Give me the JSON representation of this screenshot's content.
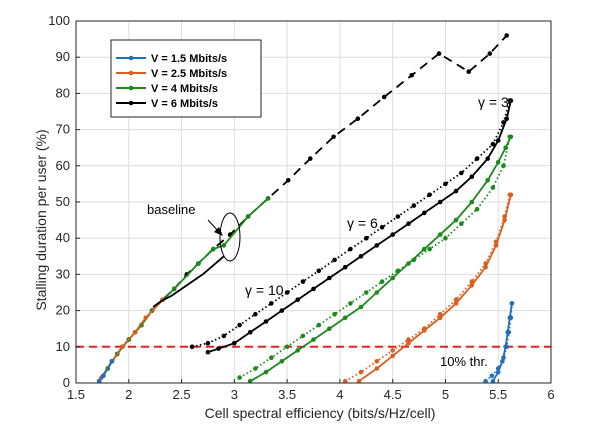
{
  "chart_data": {
    "type": "line",
    "xlabel": "Cell spectral efficiency (bits/s/Hz/cell)",
    "ylabel": "Stalling duration per user (%)",
    "xlim": [
      1.5,
      6
    ],
    "ylim": [
      0,
      100
    ],
    "xticks": [
      "1.5",
      "2",
      "2.5",
      "3",
      "3.5",
      "4",
      "4.5",
      "5",
      "5.5",
      "6"
    ],
    "yticks": [
      "0",
      "10",
      "20",
      "30",
      "40",
      "50",
      "60",
      "70",
      "80",
      "90",
      "100"
    ],
    "grid": true,
    "legend_position": "top-left",
    "colors": {
      "blue": "#1f6fbf",
      "orange": "#d95f1e",
      "green": "#1a8a1a",
      "black": "#000000",
      "threshold": "#e8211f"
    },
    "legend": [
      {
        "label": "V = 1.5 Mbits/s",
        "color": "#1f6fbf"
      },
      {
        "label": "V = 2.5 Mbits/s",
        "color": "#d95f1e"
      },
      {
        "label": "V = 4 Mbits/s",
        "color": "#1a8a1a"
      },
      {
        "label": "V = 6 Mbits/s",
        "color": "#000000"
      }
    ],
    "threshold": {
      "y": 10,
      "label": "10% thr."
    },
    "annotations": {
      "baseline": "baseline",
      "gamma3": "γ = 3",
      "gamma6": "γ = 6",
      "gamma10": "γ = 10"
    },
    "series": [
      {
        "color": "#000000",
        "style": "dashed",
        "markers": true,
        "points": [
          [
            1.72,
            0.5
          ],
          [
            1.76,
            2
          ],
          [
            1.8,
            4
          ],
          [
            1.84,
            6
          ],
          [
            1.89,
            8
          ],
          [
            1.94,
            10
          ],
          [
            2.0,
            12
          ],
          [
            2.06,
            14
          ],
          [
            2.12,
            16
          ],
          [
            2.22,
            20
          ],
          [
            2.32,
            23
          ],
          [
            2.43,
            26
          ],
          [
            2.55,
            30
          ],
          [
            2.66,
            33
          ],
          [
            2.8,
            37
          ],
          [
            2.96,
            41
          ],
          [
            3.13,
            46
          ],
          [
            3.32,
            51
          ],
          [
            3.51,
            56
          ],
          [
            3.72,
            62
          ],
          [
            3.94,
            68
          ],
          [
            4.17,
            73
          ],
          [
            4.42,
            79
          ],
          [
            4.68,
            85
          ],
          [
            4.94,
            91
          ],
          [
            5.22,
            86
          ],
          [
            5.42,
            91
          ],
          [
            5.58,
            96
          ]
        ]
      },
      {
        "color": "#1a8a1a",
        "style": "solid",
        "markers": true,
        "points": [
          [
            1.72,
            0.5
          ],
          [
            1.8,
            4
          ],
          [
            1.89,
            8
          ],
          [
            2.0,
            12
          ],
          [
            2.12,
            16
          ],
          [
            2.22,
            20
          ],
          [
            2.43,
            26
          ],
          [
            2.66,
            33
          ],
          [
            2.8,
            37
          ],
          [
            2.9,
            38
          ],
          [
            3.13,
            46
          ],
          [
            3.32,
            51
          ]
        ]
      },
      {
        "color": "#d95f1e",
        "style": "solid",
        "markers": true,
        "points": [
          [
            1.74,
            1.5
          ],
          [
            1.84,
            6
          ],
          [
            1.94,
            10
          ],
          [
            2.06,
            14
          ],
          [
            2.16,
            18
          ],
          [
            2.32,
            23
          ]
        ]
      },
      {
        "color": "#1f6fbf",
        "style": "solid",
        "markers": true,
        "points": [
          [
            1.72,
            0.5
          ],
          [
            1.76,
            2
          ],
          [
            1.84,
            6
          ]
        ]
      },
      {
        "color": "#000000",
        "style": "solid",
        "markers": false,
        "points": [
          [
            2.23,
            21
          ],
          [
            2.3,
            22.5
          ],
          [
            2.4,
            24
          ],
          [
            2.5,
            26
          ],
          [
            2.6,
            28
          ],
          [
            2.7,
            30
          ],
          [
            2.8,
            32.5
          ],
          [
            2.9,
            35
          ]
        ]
      },
      {
        "color": "#000000",
        "style": "dotted",
        "markers": true,
        "points": [
          [
            2.6,
            10
          ],
          [
            2.75,
            11
          ],
          [
            2.9,
            13
          ],
          [
            3.05,
            16
          ],
          [
            3.2,
            19
          ],
          [
            3.35,
            22
          ],
          [
            3.5,
            25
          ],
          [
            3.65,
            28
          ],
          [
            3.8,
            31
          ],
          [
            3.95,
            34
          ],
          [
            4.1,
            37
          ],
          [
            4.25,
            40
          ],
          [
            4.4,
            43
          ],
          [
            4.55,
            46
          ],
          [
            4.7,
            49
          ],
          [
            4.85,
            52
          ],
          [
            5.0,
            55
          ],
          [
            5.15,
            58
          ],
          [
            5.3,
            62
          ],
          [
            5.45,
            66
          ],
          [
            5.55,
            72
          ],
          [
            5.61,
            78
          ]
        ]
      },
      {
        "color": "#000000",
        "style": "solid",
        "markers": true,
        "points": [
          [
            2.75,
            8.5
          ],
          [
            2.85,
            9.5
          ],
          [
            3.0,
            11
          ],
          [
            3.15,
            14
          ],
          [
            3.3,
            17
          ],
          [
            3.45,
            20
          ],
          [
            3.6,
            23
          ],
          [
            3.75,
            26
          ],
          [
            3.9,
            29
          ],
          [
            4.05,
            32
          ],
          [
            4.2,
            35
          ],
          [
            4.35,
            38
          ],
          [
            4.5,
            41
          ],
          [
            4.65,
            44
          ],
          [
            4.8,
            47
          ],
          [
            4.95,
            50
          ],
          [
            5.1,
            53
          ],
          [
            5.25,
            57
          ],
          [
            5.4,
            62
          ],
          [
            5.5,
            67
          ],
          [
            5.58,
            73
          ],
          [
            5.62,
            78
          ]
        ]
      },
      {
        "color": "#1a8a1a",
        "style": "dotted",
        "markers": true,
        "points": [
          [
            3.05,
            1.5
          ],
          [
            3.2,
            4
          ],
          [
            3.35,
            7
          ],
          [
            3.5,
            10
          ],
          [
            3.65,
            13
          ],
          [
            3.8,
            16
          ],
          [
            3.95,
            19
          ],
          [
            4.1,
            22
          ],
          [
            4.25,
            25
          ],
          [
            4.4,
            28
          ],
          [
            4.55,
            31
          ],
          [
            4.7,
            34
          ],
          [
            4.85,
            37
          ],
          [
            5.0,
            40
          ],
          [
            5.15,
            44
          ],
          [
            5.3,
            48
          ],
          [
            5.45,
            54
          ],
          [
            5.55,
            60
          ],
          [
            5.61,
            68
          ]
        ]
      },
      {
        "color": "#1a8a1a",
        "style": "solid",
        "markers": true,
        "points": [
          [
            3.15,
            0.5
          ],
          [
            3.3,
            3
          ],
          [
            3.45,
            6
          ],
          [
            3.6,
            9
          ],
          [
            3.75,
            12
          ],
          [
            3.9,
            15
          ],
          [
            4.05,
            18
          ],
          [
            4.2,
            21
          ],
          [
            4.35,
            25
          ],
          [
            4.5,
            29
          ],
          [
            4.65,
            33
          ],
          [
            4.8,
            37
          ],
          [
            4.95,
            41
          ],
          [
            5.1,
            45
          ],
          [
            5.25,
            50
          ],
          [
            5.4,
            56
          ],
          [
            5.5,
            61
          ],
          [
            5.57,
            65
          ],
          [
            5.62,
            68
          ]
        ]
      },
      {
        "color": "#d95f1e",
        "style": "dotted",
        "markers": true,
        "points": [
          [
            4.05,
            0.5
          ],
          [
            4.2,
            3
          ],
          [
            4.35,
            6
          ],
          [
            4.5,
            9
          ],
          [
            4.65,
            12
          ],
          [
            4.8,
            15
          ],
          [
            4.95,
            19
          ],
          [
            5.1,
            23
          ],
          [
            5.25,
            28
          ],
          [
            5.38,
            33
          ],
          [
            5.48,
            39
          ],
          [
            5.56,
            46
          ],
          [
            5.61,
            52
          ]
        ]
      },
      {
        "color": "#d95f1e",
        "style": "solid",
        "markers": true,
        "points": [
          [
            4.18,
            0.5
          ],
          [
            4.35,
            4
          ],
          [
            4.5,
            7.5
          ],
          [
            4.65,
            11
          ],
          [
            4.8,
            14.5
          ],
          [
            4.95,
            18
          ],
          [
            5.1,
            22
          ],
          [
            5.25,
            27
          ],
          [
            5.38,
            32
          ],
          [
            5.48,
            38
          ],
          [
            5.56,
            45
          ],
          [
            5.62,
            52
          ]
        ]
      },
      {
        "color": "#1f6fbf",
        "style": "dotted",
        "markers": true,
        "points": [
          [
            5.38,
            0.5
          ],
          [
            5.44,
            2
          ],
          [
            5.5,
            4
          ],
          [
            5.55,
            7
          ],
          [
            5.58,
            10
          ],
          [
            5.6,
            14
          ],
          [
            5.62,
            18
          ],
          [
            5.63,
            22
          ]
        ]
      },
      {
        "color": "#1f6fbf",
        "style": "solid",
        "markers": true,
        "points": [
          [
            5.45,
            0.5
          ],
          [
            5.5,
            3
          ],
          [
            5.54,
            6
          ],
          [
            5.57,
            10
          ],
          [
            5.59,
            14
          ],
          [
            5.61,
            18
          ],
          [
            5.63,
            22
          ]
        ]
      }
    ]
  }
}
